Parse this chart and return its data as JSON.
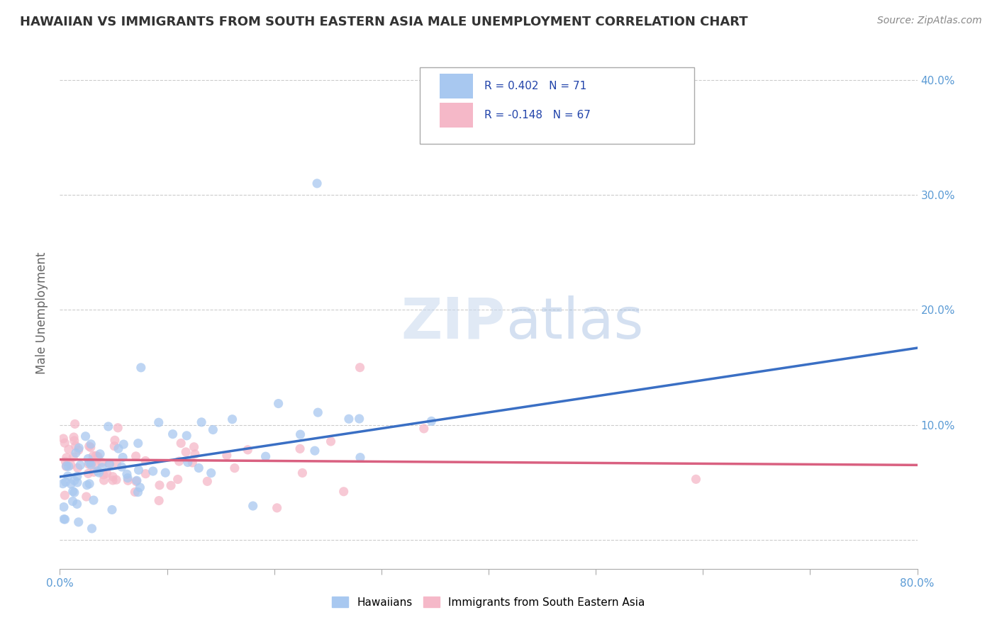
{
  "title": "HAWAIIAN VS IMMIGRANTS FROM SOUTH EASTERN ASIA MALE UNEMPLOYMENT CORRELATION CHART",
  "source": "Source: ZipAtlas.com",
  "ylabel": "Male Unemployment",
  "xlim": [
    0,
    0.8
  ],
  "ylim": [
    -0.025,
    0.42
  ],
  "hawaiian_R": 0.402,
  "hawaiian_N": 71,
  "immigrant_R": -0.148,
  "immigrant_N": 67,
  "hawaiian_color": "#a8c8f0",
  "hawaiian_line_color": "#3a6fc4",
  "immigrant_color": "#f5b8c8",
  "immigrant_line_color": "#d96080",
  "legend_label_hawaiian": "Hawaiians",
  "legend_label_immigrant": "Immigrants from South Eastern Asia",
  "watermark_zip": "ZIP",
  "watermark_atlas": "atlas",
  "tick_color": "#5b9bd5",
  "grid_color": "#cccccc",
  "ylabel_color": "#666666",
  "title_color": "#333333",
  "source_color": "#888888",
  "ytick_vals": [
    0.0,
    0.1,
    0.2,
    0.3,
    0.4
  ],
  "ytick_labels": [
    "",
    "10.0%",
    "20.0%",
    "30.0%",
    "40.0%"
  ]
}
